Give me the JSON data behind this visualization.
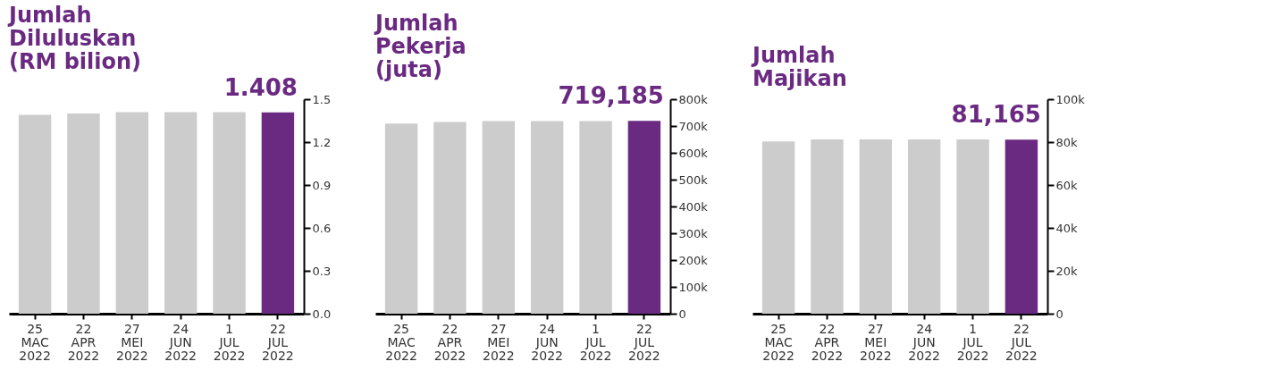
{
  "chart_data": [
    {
      "type": "bar",
      "title": "Jumlah\nDiluluskan\n(RM bilion)",
      "categories": [
        "25\nMAC\n2022",
        "22\nAPR\n2022",
        "27\nMEI\n2022",
        "24\nJUN\n2022",
        "1\nJUL\n2022",
        "22\nJUL\n2022"
      ],
      "values": [
        1.39,
        1.4,
        1.41,
        1.41,
        1.41,
        1.408
      ],
      "colors": [
        "#cccccc",
        "#cccccc",
        "#cccccc",
        "#cccccc",
        "#cccccc",
        "#6b2a82"
      ],
      "value_labels": [
        null,
        null,
        null,
        null,
        null,
        "1.408"
      ],
      "ylim": [
        0,
        1.5
      ],
      "yticks": [
        {
          "value": 0,
          "label": "0.0"
        },
        0.3,
        0.6,
        0.9,
        1.2,
        1.5
      ],
      "grid": false
    },
    {
      "type": "bar",
      "title": "Jumlah\nPekerja\n(juta)",
      "categories": [
        "25\nMAC\n2022",
        "22\nAPR\n2022",
        "27\nMEI\n2022",
        "24\nJUN\n2022",
        "1\nJUL\n2022",
        "22\nJUL\n2022"
      ],
      "values": [
        709000,
        715000,
        718000,
        718000,
        718000,
        719185
      ],
      "colors": [
        "#cccccc",
        "#cccccc",
        "#cccccc",
        "#cccccc",
        "#cccccc",
        "#6b2a82"
      ],
      "value_labels": [
        null,
        null,
        null,
        null,
        null,
        "719,185"
      ],
      "ylim": [
        0,
        800000
      ],
      "yticks": [
        0,
        {
          "value": 100000,
          "label": "100k"
        },
        {
          "value": 200000,
          "label": "200k"
        },
        {
          "value": 300000,
          "label": "300k"
        },
        {
          "value": 400000,
          "label": "400k"
        },
        {
          "value": 500000,
          "label": "500k"
        },
        {
          "value": 600000,
          "label": "600k"
        },
        {
          "value": 700000,
          "label": "700k"
        },
        {
          "value": 800000,
          "label": "800k"
        }
      ],
      "grid": false
    },
    {
      "type": "bar",
      "title": "Jumlah\nMajikan",
      "categories": [
        "25\nMAC\n2022",
        "22\nAPR\n2022",
        "27\nMEI\n2022",
        "24\nJUN\n2022",
        "1\nJUL\n2022",
        "22\nJUL\n2022"
      ],
      "values": [
        80300,
        81200,
        81200,
        81200,
        81200,
        81165
      ],
      "colors": [
        "#cccccc",
        "#cccccc",
        "#cccccc",
        "#cccccc",
        "#cccccc",
        "#6b2a82"
      ],
      "value_labels": [
        null,
        null,
        null,
        null,
        null,
        "81,165"
      ],
      "ylim": [
        0,
        100000
      ],
      "yticks": [
        0,
        {
          "value": 20000,
          "label": "20k"
        },
        {
          "value": 40000,
          "label": "40k"
        },
        {
          "value": 60000,
          "label": "60k"
        },
        {
          "value": 80000,
          "label": "80k"
        },
        {
          "value": 100000,
          "label": "100k"
        }
      ],
      "grid": false
    }
  ]
}
